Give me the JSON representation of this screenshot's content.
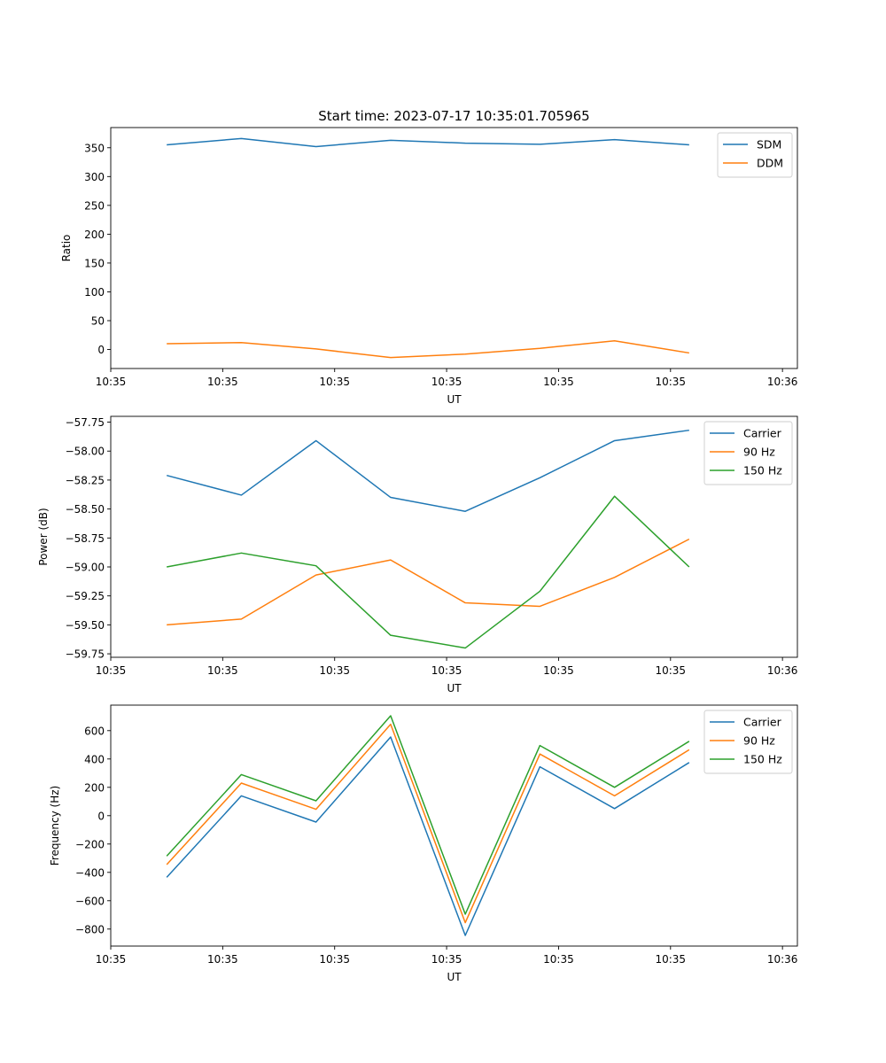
{
  "figure_title": "Start time: 2023-07-17 10:35:01.705965",
  "chart_data": [
    {
      "type": "line",
      "title": "Start time: 2023-07-17 10:35:01.705965",
      "xlabel": "UT",
      "ylabel": "Ratio",
      "xlim": [
        0,
        9.2
      ],
      "ylim": [
        -33,
        385
      ],
      "x": [
        0.75,
        1.75,
        2.75,
        3.75,
        4.75,
        5.75,
        6.75,
        7.75
      ],
      "xticks": [
        0,
        1.5,
        3,
        4.5,
        6,
        7.5,
        9
      ],
      "xtick_labels": [
        "10:35",
        "10:35",
        "10:35",
        "10:35",
        "10:35",
        "10:35",
        "10:36"
      ],
      "yticks": [
        0,
        50,
        100,
        150,
        200,
        250,
        300,
        350
      ],
      "ytick_labels": [
        "0",
        "50",
        "100",
        "150",
        "200",
        "250",
        "300",
        "350"
      ],
      "legend": "top-right",
      "series": [
        {
          "name": "SDM",
          "color": "#1f77b4",
          "values": [
            355,
            366,
            352,
            363,
            358,
            356,
            364,
            355
          ]
        },
        {
          "name": "DDM",
          "color": "#ff7f0e",
          "values": [
            10,
            12,
            1,
            -14,
            -8,
            2,
            15,
            -6
          ]
        }
      ]
    },
    {
      "type": "line",
      "xlabel": "UT",
      "ylabel": "Power (dB)",
      "xlim": [
        0,
        9.2
      ],
      "ylim": [
        -59.78,
        -57.7
      ],
      "x": [
        0.75,
        1.75,
        2.75,
        3.75,
        4.75,
        5.75,
        6.75,
        7.75
      ],
      "xticks": [
        0,
        1.5,
        3,
        4.5,
        6,
        7.5,
        9
      ],
      "xtick_labels": [
        "10:35",
        "10:35",
        "10:35",
        "10:35",
        "10:35",
        "10:35",
        "10:36"
      ],
      "yticks": [
        -59.75,
        -59.5,
        -59.25,
        -59.0,
        -58.75,
        -58.5,
        -58.25,
        -58.0,
        -57.75
      ],
      "ytick_labels": [
        "−59.75",
        "−59.50",
        "−59.25",
        "−59.00",
        "−58.75",
        "−58.50",
        "−58.25",
        "−58.00",
        "−57.75"
      ],
      "legend": "top-right",
      "series": [
        {
          "name": "Carrier",
          "color": "#1f77b4",
          "values": [
            -58.21,
            -58.38,
            -57.91,
            -58.4,
            -58.52,
            -58.23,
            -57.91,
            -57.82
          ]
        },
        {
          "name": "90 Hz",
          "color": "#ff7f0e",
          "values": [
            -59.5,
            -59.45,
            -59.07,
            -58.94,
            -59.31,
            -59.34,
            -59.09,
            -58.76
          ]
        },
        {
          "name": "150 Hz",
          "color": "#2ca02c",
          "values": [
            -59.0,
            -58.88,
            -58.99,
            -59.59,
            -59.7,
            -59.21,
            -58.39,
            -59.0
          ]
        }
      ]
    },
    {
      "type": "line",
      "xlabel": "UT",
      "ylabel": "Frequency (Hz)",
      "xlim": [
        0,
        9.2
      ],
      "ylim": [
        -920,
        780
      ],
      "x": [
        0.75,
        1.75,
        2.75,
        3.75,
        4.75,
        5.75,
        6.75,
        7.75
      ],
      "xticks": [
        0,
        1.5,
        3,
        4.5,
        6,
        7.5,
        9
      ],
      "xtick_labels": [
        "10:35",
        "10:35",
        "10:35",
        "10:35",
        "10:35",
        "10:35",
        "10:36"
      ],
      "yticks": [
        -800,
        -600,
        -400,
        -200,
        0,
        200,
        400,
        600
      ],
      "ytick_labels": [
        "−800",
        "−600",
        "−400",
        "−200",
        "0",
        "200",
        "400",
        "600"
      ],
      "legend": "top-right",
      "series": [
        {
          "name": "Carrier",
          "color": "#1f77b4",
          "values": [
            -435,
            140,
            -45,
            555,
            -845,
            345,
            50,
            375
          ]
        },
        {
          "name": "90 Hz",
          "color": "#ff7f0e",
          "values": [
            -345,
            230,
            45,
            645,
            -755,
            435,
            140,
            465
          ]
        },
        {
          "name": "150 Hz",
          "color": "#2ca02c",
          "values": [
            -285,
            290,
            105,
            705,
            -695,
            495,
            200,
            525
          ]
        }
      ]
    }
  ]
}
